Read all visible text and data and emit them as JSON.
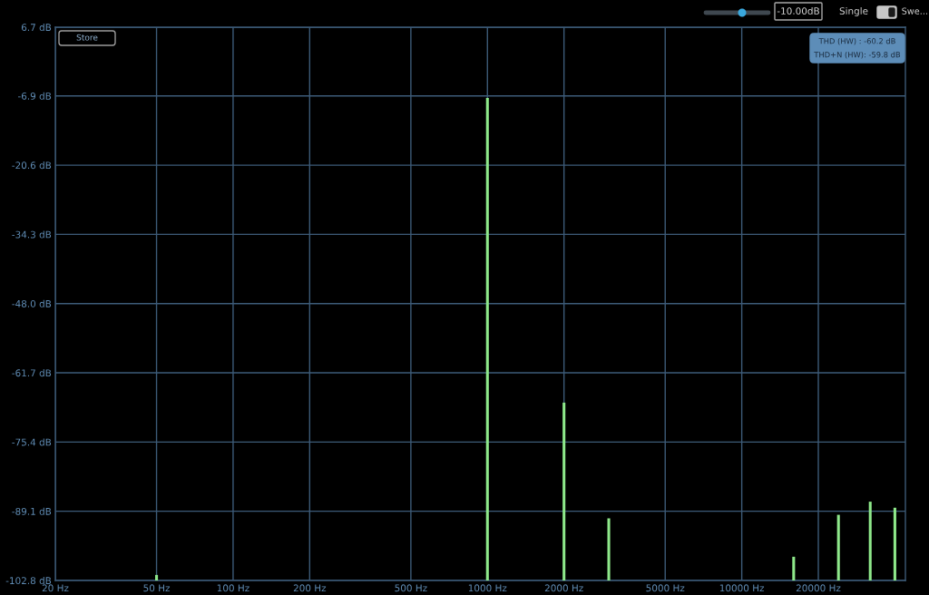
{
  "chart_data": {
    "type": "bar",
    "x": [
      50,
      1000,
      2000,
      3000,
      16000,
      24000,
      32000,
      40000
    ],
    "base": [
      -102.8,
      -102.8,
      -102.8,
      -102.8,
      -102.8,
      -102.8,
      -102.8,
      -102.8
    ],
    "values": [
      1.1,
      95.5,
      35.2,
      12.3,
      4.7,
      13.0,
      15.6,
      14.4
    ],
    "color": "#8ee88a",
    "log": "x",
    "xlim": [
      20,
      44000
    ],
    "xticks": [
      {
        "value": 20,
        "label": "20 Hz"
      },
      {
        "value": 50,
        "label": "50 Hz"
      },
      {
        "value": 100,
        "label": "100 Hz"
      },
      {
        "value": 200,
        "label": "200 Hz"
      },
      {
        "value": 500,
        "label": "500 Hz"
      },
      {
        "value": 1000,
        "label": "1000 Hz"
      },
      {
        "value": 2000,
        "label": "2000 Hz"
      },
      {
        "value": 5000,
        "label": "5000 Hz"
      },
      {
        "value": 10000,
        "label": "10000 Hz"
      },
      {
        "value": 20000,
        "label": "20000 Hz"
      }
    ],
    "ylim": [
      -102.8,
      6.7
    ],
    "yticks": [
      {
        "value": 6.7,
        "label": "6.7 dB"
      },
      {
        "value": -6.9,
        "label": "-6.9 dB"
      },
      {
        "value": -20.6,
        "label": "-20.6 dB"
      },
      {
        "value": -34.3,
        "label": "-34.3 dB"
      },
      {
        "value": -48.0,
        "label": "-48.0 dB"
      },
      {
        "value": -61.7,
        "label": "-61.7 dB"
      },
      {
        "value": -75.4,
        "label": "-75.4 dB"
      },
      {
        "value": -89.1,
        "label": "-89.1 dB"
      },
      {
        "value": -102.8,
        "label": "-102.8 dB"
      }
    ],
    "grid": true,
    "annotations": [
      "Store",
      "THD (HW) : -60.2 dB",
      "THD+N (HW): -59.8 dB",
      "-10.00dB",
      "Single",
      "Swe..."
    ]
  }
}
